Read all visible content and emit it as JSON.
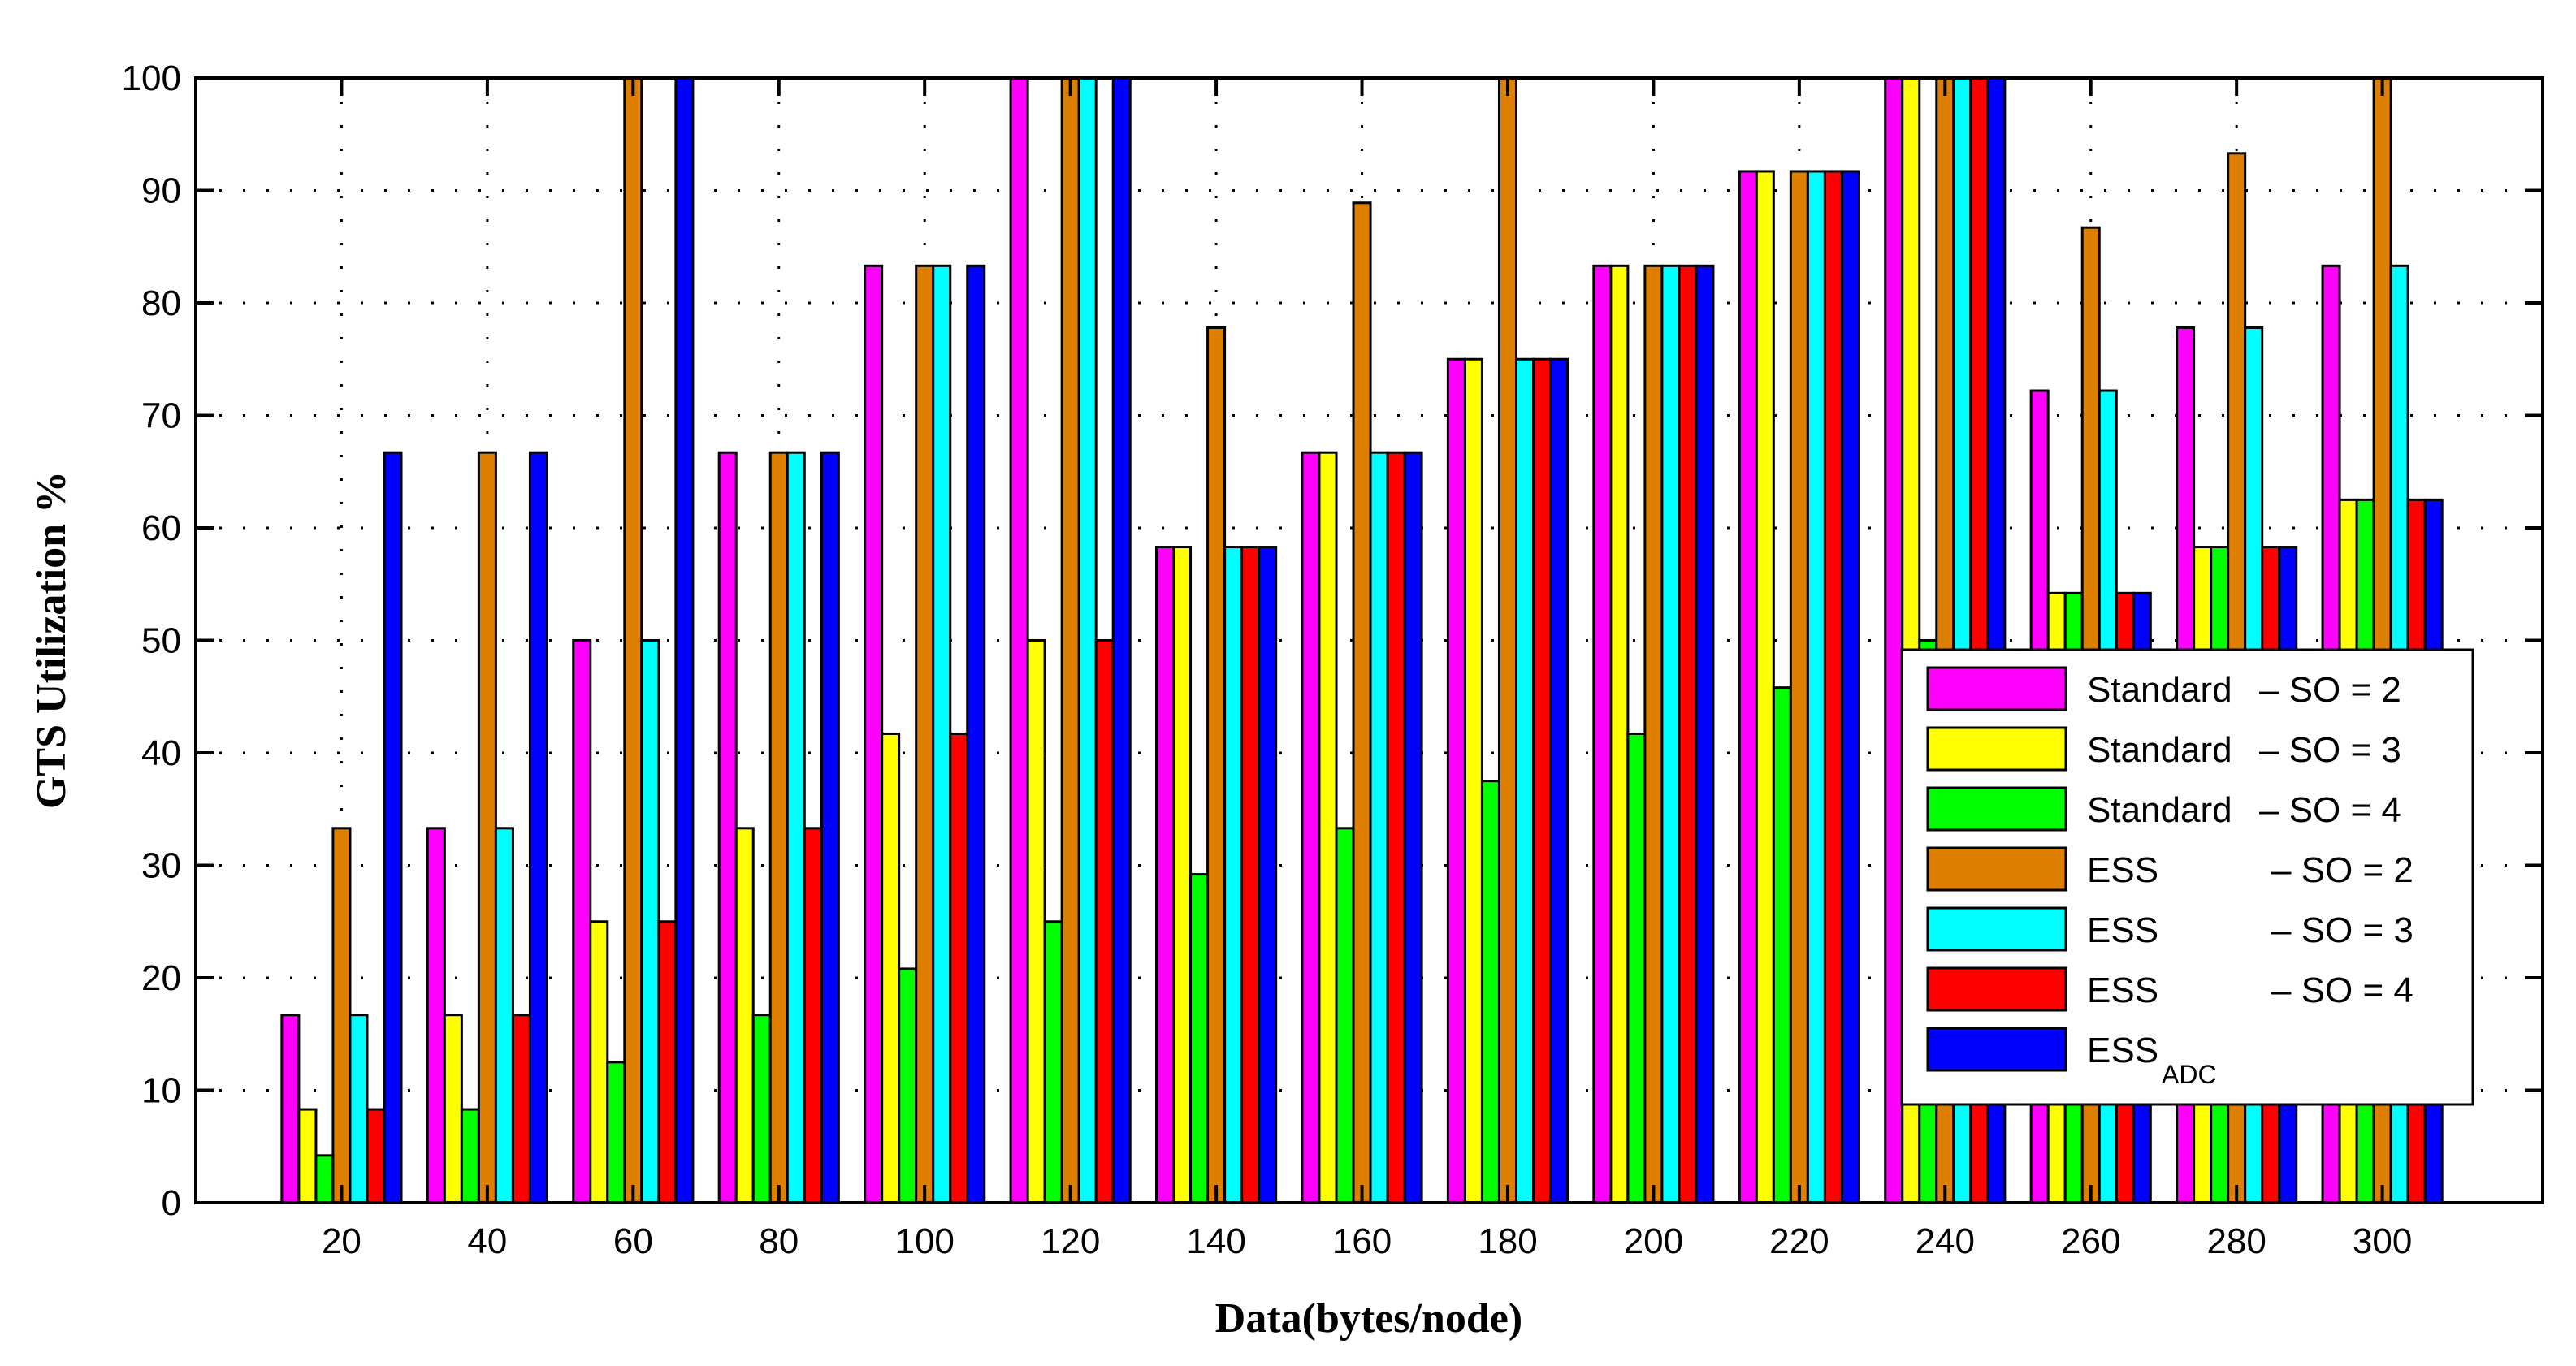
{
  "chart_data": {
    "type": "bar",
    "title": "",
    "xlabel": "Data(bytes/node)",
    "ylabel": "GTS Utilization %",
    "ylim": [
      0,
      100
    ],
    "yticks": [
      0,
      10,
      20,
      30,
      40,
      50,
      60,
      70,
      80,
      90,
      100
    ],
    "grid": true,
    "legend_position": "lower right (inside)",
    "categories": [
      "20",
      "40",
      "60",
      "80",
      "100",
      "120",
      "140",
      "160",
      "180",
      "200",
      "220",
      "240",
      "260",
      "280",
      "300"
    ],
    "series": [
      {
        "name": "Standard – SO = 2",
        "color": "#ff00ff",
        "values": [
          16.7,
          33.3,
          50,
          66.7,
          83.3,
          100,
          58.3,
          66.7,
          75,
          83.3,
          91.7,
          100,
          72.2,
          77.8,
          83.3
        ]
      },
      {
        "name": "Standard – SO = 3",
        "color": "#ffff00",
        "values": [
          8.3,
          16.7,
          25,
          33.3,
          41.7,
          50,
          58.3,
          66.7,
          75,
          83.3,
          91.7,
          100,
          54.2,
          58.3,
          62.5
        ]
      },
      {
        "name": "Standard – SO = 4",
        "color": "#00ff00",
        "values": [
          4.2,
          8.3,
          12.5,
          16.7,
          20.8,
          25,
          29.2,
          33.3,
          37.5,
          41.7,
          45.8,
          50,
          54.2,
          58.3,
          62.5
        ]
      },
      {
        "name": "ESS – SO = 2",
        "color": "#df7f00",
        "values": [
          33.3,
          66.7,
          100,
          66.7,
          83.3,
          100,
          77.8,
          88.9,
          100,
          83.3,
          91.7,
          100,
          86.7,
          93.3,
          100
        ]
      },
      {
        "name": "ESS – SO = 3",
        "color": "#00ffff",
        "values": [
          16.7,
          33.3,
          50,
          66.7,
          83.3,
          100,
          58.3,
          66.7,
          75,
          83.3,
          91.7,
          100,
          72.2,
          77.8,
          83.3
        ]
      },
      {
        "name": "ESS – SO = 4",
        "color": "#ff0000",
        "values": [
          8.3,
          16.7,
          25,
          33.3,
          41.7,
          50,
          58.3,
          66.7,
          75,
          83.3,
          91.7,
          100,
          54.2,
          58.3,
          62.5
        ]
      },
      {
        "name": "ESS_ADC",
        "color": "#0000ff",
        "values": [
          66.7,
          66.7,
          100,
          66.7,
          83.3,
          100,
          58.3,
          66.7,
          75,
          83.3,
          91.7,
          100,
          54.2,
          58.3,
          62.5
        ]
      }
    ]
  },
  "legend": {
    "items": [
      {
        "prefix": "Standard",
        "suffix": "– SO = 2",
        "sub": ""
      },
      {
        "prefix": "Standard",
        "suffix": "– SO = 3",
        "sub": ""
      },
      {
        "prefix": "Standard",
        "suffix": "– SO = 4",
        "sub": ""
      },
      {
        "prefix": "ESS",
        "suffix": "– SO = 2",
        "sub": ""
      },
      {
        "prefix": "ESS",
        "suffix": "– SO = 3",
        "sub": ""
      },
      {
        "prefix": "ESS",
        "suffix": "– SO = 4",
        "sub": ""
      },
      {
        "prefix": "ESS",
        "suffix": "",
        "sub": "ADC"
      }
    ]
  }
}
